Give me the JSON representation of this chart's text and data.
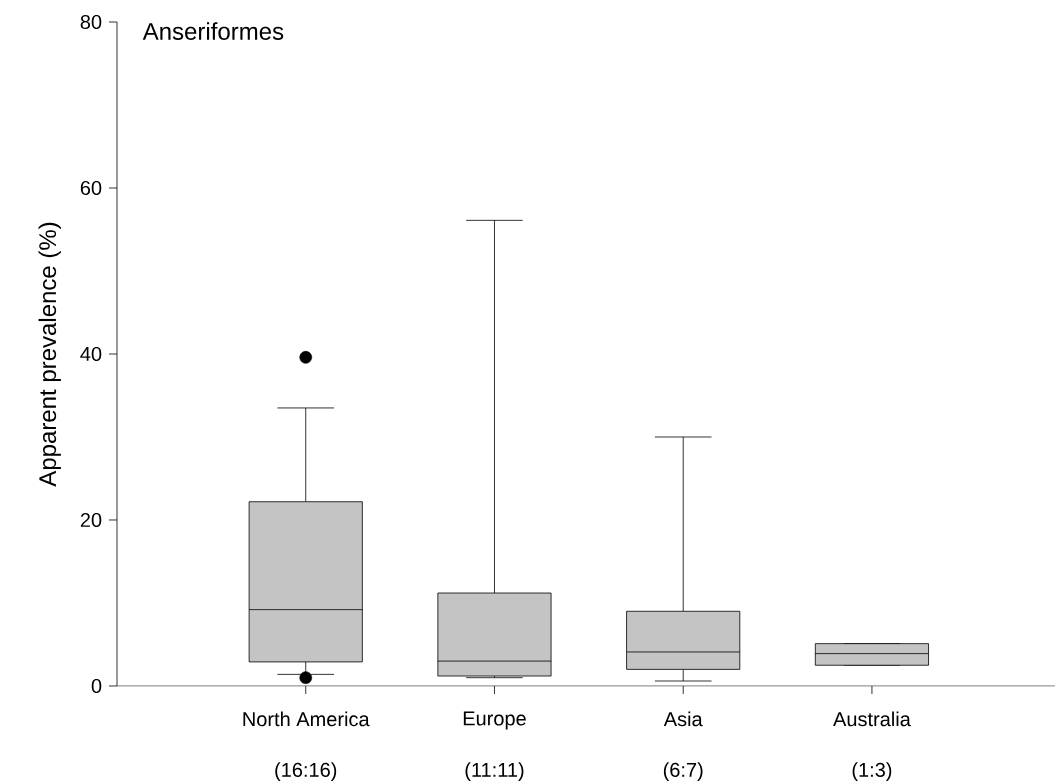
{
  "chart_data": {
    "type": "box",
    "title": "Anseriformes",
    "ylabel": "Apparent prevalence (%)",
    "categories": [
      "North America",
      "Europe",
      "Asia",
      "Australia"
    ],
    "boxes": [
      {
        "low": 1.4,
        "q1": 2.9,
        "median": 9.2,
        "q3": 22.2,
        "high": 33.5,
        "outliers": [
          39.6,
          1.0
        ]
      },
      {
        "low": 1.0,
        "q1": 1.2,
        "median": 3.0,
        "q3": 11.2,
        "high": 56.1
      },
      {
        "low": 0.6,
        "q1": 2.0,
        "median": 4.1,
        "q3": 9.0,
        "high": 30.0
      },
      {
        "low": 2.5,
        "q1": 2.5,
        "median": 3.9,
        "q3": 5.1,
        "high": 5.1
      }
    ],
    "color": "#c4c4c4",
    "marker": "circle",
    "ylim": [
      0,
      80
    ],
    "yticks": [
      0,
      20,
      40,
      60,
      80
    ],
    "grid": false,
    "annotations": [
      "(16:16)",
      "(11:11)",
      "(6:7)",
      "(1:3)"
    ]
  }
}
